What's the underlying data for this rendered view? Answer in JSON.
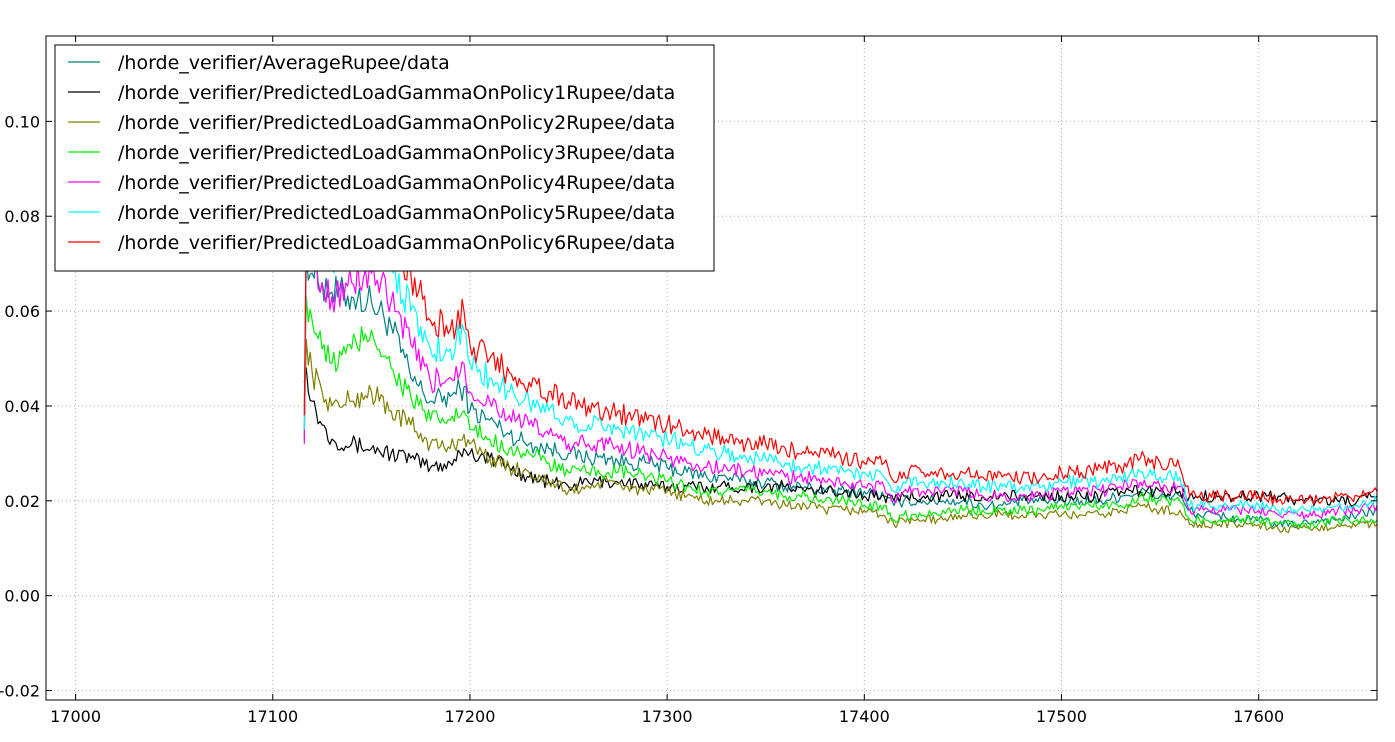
{
  "chart_data": {
    "type": "line",
    "title": "",
    "xlabel": "",
    "ylabel": "",
    "xlim": [
      16985,
      17660
    ],
    "ylim": [
      -0.022,
      0.118
    ],
    "x_ticks": [
      17000,
      17100,
      17200,
      17300,
      17400,
      17500,
      17600
    ],
    "x_tick_labels": [
      "17000",
      "17100",
      "17200",
      "17300",
      "17400",
      "17500",
      "17600"
    ],
    "y_ticks": [
      -0.02,
      0.0,
      0.02,
      0.04,
      0.06,
      0.08,
      0.1
    ],
    "y_tick_labels": [
      "-0.02",
      "0.00",
      "0.02",
      "0.04",
      "0.06",
      "0.08",
      "0.10"
    ],
    "grid": true,
    "legend_position": "top-left",
    "series": [
      {
        "name": "/horde_verifier/AverageRupee/data",
        "color": "#008080",
        "x": [
          17116,
          17117,
          17120,
          17125,
          17130,
          17140,
          17150,
          17160,
          17170,
          17180,
          17190,
          17197,
          17200,
          17210,
          17220,
          17230,
          17240,
          17250,
          17260,
          17270,
          17280,
          17290,
          17300,
          17310,
          17320,
          17330,
          17340,
          17350,
          17360,
          17370,
          17380,
          17390,
          17400,
          17410,
          17415,
          17420,
          17430,
          17440,
          17450,
          17460,
          17470,
          17480,
          17490,
          17500,
          17510,
          17520,
          17530,
          17540,
          17550,
          17560,
          17563,
          17565,
          17570,
          17580,
          17590,
          17600,
          17610,
          17620,
          17630,
          17640,
          17650,
          17660
        ],
        "y": [
          0.033,
          0.072,
          0.068,
          0.066,
          0.064,
          0.063,
          0.062,
          0.057,
          0.046,
          0.041,
          0.042,
          0.044,
          0.039,
          0.037,
          0.034,
          0.032,
          0.031,
          0.03,
          0.029,
          0.029,
          0.028,
          0.028,
          0.027,
          0.026,
          0.025,
          0.025,
          0.024,
          0.024,
          0.023,
          0.023,
          0.022,
          0.022,
          0.022,
          0.021,
          0.019,
          0.02,
          0.02,
          0.02,
          0.02,
          0.019,
          0.019,
          0.02,
          0.02,
          0.02,
          0.02,
          0.02,
          0.021,
          0.022,
          0.021,
          0.021,
          0.019,
          0.018,
          0.017,
          0.017,
          0.016,
          0.016,
          0.015,
          0.015,
          0.016,
          0.016,
          0.017,
          0.018
        ]
      },
      {
        "name": "/horde_verifier/PredictedLoadGammaOnPolicy1Rupee/data",
        "color": "#000000",
        "x": [
          17116,
          17117,
          17120,
          17125,
          17130,
          17140,
          17150,
          17160,
          17170,
          17180,
          17190,
          17197,
          17200,
          17210,
          17220,
          17230,
          17240,
          17250,
          17260,
          17270,
          17280,
          17290,
          17300,
          17310,
          17320,
          17330,
          17340,
          17350,
          17360,
          17370,
          17380,
          17390,
          17400,
          17410,
          17415,
          17420,
          17430,
          17440,
          17450,
          17460,
          17470,
          17480,
          17490,
          17500,
          17510,
          17520,
          17530,
          17540,
          17550,
          17560,
          17563,
          17565,
          17570,
          17580,
          17590,
          17600,
          17610,
          17620,
          17630,
          17640,
          17650,
          17660
        ],
        "y": [
          0.045,
          0.048,
          0.041,
          0.036,
          0.033,
          0.032,
          0.031,
          0.03,
          0.029,
          0.027,
          0.028,
          0.031,
          0.03,
          0.029,
          0.027,
          0.025,
          0.024,
          0.023,
          0.024,
          0.024,
          0.024,
          0.023,
          0.023,
          0.023,
          0.023,
          0.023,
          0.023,
          0.023,
          0.023,
          0.022,
          0.022,
          0.022,
          0.021,
          0.021,
          0.02,
          0.021,
          0.021,
          0.021,
          0.021,
          0.021,
          0.021,
          0.021,
          0.021,
          0.021,
          0.021,
          0.021,
          0.022,
          0.022,
          0.022,
          0.022,
          0.021,
          0.021,
          0.021,
          0.021,
          0.021,
          0.021,
          0.021,
          0.02,
          0.02,
          0.02,
          0.02,
          0.021
        ]
      },
      {
        "name": "/horde_verifier/PredictedLoadGammaOnPolicy2Rupee/data",
        "color": "#808000",
        "x": [
          17116,
          17117,
          17120,
          17125,
          17130,
          17140,
          17150,
          17160,
          17170,
          17180,
          17190,
          17197,
          17200,
          17210,
          17220,
          17230,
          17240,
          17250,
          17260,
          17270,
          17280,
          17290,
          17300,
          17310,
          17320,
          17330,
          17340,
          17350,
          17360,
          17370,
          17380,
          17390,
          17400,
          17410,
          17415,
          17420,
          17430,
          17440,
          17450,
          17460,
          17470,
          17480,
          17490,
          17500,
          17510,
          17520,
          17530,
          17540,
          17550,
          17560,
          17563,
          17565,
          17570,
          17580,
          17590,
          17600,
          17610,
          17620,
          17630,
          17640,
          17650,
          17660
        ],
        "y": [
          0.035,
          0.054,
          0.047,
          0.043,
          0.04,
          0.041,
          0.043,
          0.039,
          0.036,
          0.032,
          0.031,
          0.034,
          0.032,
          0.029,
          0.027,
          0.026,
          0.024,
          0.022,
          0.023,
          0.024,
          0.023,
          0.022,
          0.022,
          0.021,
          0.02,
          0.02,
          0.02,
          0.02,
          0.019,
          0.019,
          0.018,
          0.018,
          0.018,
          0.017,
          0.015,
          0.016,
          0.016,
          0.016,
          0.017,
          0.017,
          0.017,
          0.017,
          0.017,
          0.017,
          0.017,
          0.017,
          0.018,
          0.019,
          0.018,
          0.018,
          0.016,
          0.015,
          0.015,
          0.015,
          0.015,
          0.015,
          0.014,
          0.014,
          0.014,
          0.015,
          0.015,
          0.015
        ]
      },
      {
        "name": "/horde_verifier/PredictedLoadGammaOnPolicy3Rupee/data",
        "color": "#00ee00",
        "x": [
          17116,
          17117,
          17120,
          17125,
          17130,
          17140,
          17150,
          17160,
          17170,
          17180,
          17190,
          17197,
          17200,
          17210,
          17220,
          17230,
          17240,
          17250,
          17260,
          17270,
          17280,
          17290,
          17300,
          17310,
          17320,
          17330,
          17340,
          17350,
          17360,
          17370,
          17380,
          17390,
          17400,
          17410,
          17415,
          17420,
          17430,
          17440,
          17450,
          17460,
          17470,
          17480,
          17490,
          17500,
          17510,
          17520,
          17530,
          17540,
          17550,
          17560,
          17563,
          17565,
          17570,
          17580,
          17590,
          17600,
          17610,
          17620,
          17630,
          17640,
          17650,
          17660
        ],
        "y": [
          0.04,
          0.063,
          0.058,
          0.052,
          0.049,
          0.052,
          0.056,
          0.048,
          0.042,
          0.037,
          0.037,
          0.039,
          0.035,
          0.033,
          0.031,
          0.03,
          0.028,
          0.026,
          0.026,
          0.026,
          0.026,
          0.025,
          0.024,
          0.023,
          0.022,
          0.022,
          0.022,
          0.022,
          0.021,
          0.021,
          0.02,
          0.02,
          0.019,
          0.019,
          0.016,
          0.017,
          0.017,
          0.018,
          0.018,
          0.018,
          0.018,
          0.018,
          0.018,
          0.019,
          0.019,
          0.019,
          0.019,
          0.021,
          0.02,
          0.02,
          0.017,
          0.016,
          0.016,
          0.016,
          0.016,
          0.016,
          0.015,
          0.015,
          0.015,
          0.016,
          0.016,
          0.016
        ]
      },
      {
        "name": "/horde_verifier/PredictedLoadGammaOnPolicy4Rupee/data",
        "color": "#ff00ff",
        "x": [
          17116,
          17117,
          17120,
          17125,
          17130,
          17140,
          17150,
          17160,
          17170,
          17180,
          17190,
          17197,
          17200,
          17210,
          17220,
          17230,
          17240,
          17250,
          17260,
          17270,
          17280,
          17290,
          17300,
          17310,
          17320,
          17330,
          17340,
          17350,
          17360,
          17370,
          17380,
          17390,
          17400,
          17410,
          17415,
          17420,
          17430,
          17440,
          17450,
          17460,
          17470,
          17480,
          17490,
          17500,
          17510,
          17520,
          17530,
          17540,
          17550,
          17560,
          17563,
          17565,
          17570,
          17580,
          17590,
          17600,
          17610,
          17620,
          17630,
          17640,
          17650,
          17660
        ],
        "y": [
          0.032,
          0.074,
          0.07,
          0.066,
          0.063,
          0.066,
          0.068,
          0.062,
          0.053,
          0.045,
          0.046,
          0.049,
          0.043,
          0.041,
          0.038,
          0.036,
          0.034,
          0.032,
          0.032,
          0.032,
          0.031,
          0.03,
          0.029,
          0.028,
          0.027,
          0.027,
          0.026,
          0.026,
          0.025,
          0.025,
          0.024,
          0.024,
          0.023,
          0.023,
          0.02,
          0.022,
          0.022,
          0.022,
          0.022,
          0.021,
          0.021,
          0.021,
          0.021,
          0.022,
          0.022,
          0.022,
          0.023,
          0.024,
          0.023,
          0.023,
          0.02,
          0.018,
          0.018,
          0.018,
          0.018,
          0.018,
          0.017,
          0.017,
          0.017,
          0.018,
          0.018,
          0.019
        ]
      },
      {
        "name": "/horde_verifier/PredictedLoadGammaOnPolicy5Rupee/data",
        "color": "#00ffff",
        "x": [
          17116,
          17117,
          17120,
          17125,
          17130,
          17140,
          17150,
          17160,
          17170,
          17180,
          17190,
          17197,
          17200,
          17210,
          17220,
          17230,
          17240,
          17250,
          17260,
          17270,
          17280,
          17290,
          17300,
          17310,
          17320,
          17330,
          17340,
          17350,
          17360,
          17370,
          17380,
          17390,
          17400,
          17410,
          17415,
          17420,
          17430,
          17440,
          17450,
          17460,
          17470,
          17480,
          17490,
          17500,
          17510,
          17520,
          17530,
          17540,
          17550,
          17560,
          17563,
          17565,
          17570,
          17580,
          17590,
          17600,
          17610,
          17620,
          17630,
          17640,
          17650,
          17660
        ],
        "y": [
          0.035,
          0.078,
          0.075,
          0.072,
          0.07,
          0.072,
          0.075,
          0.071,
          0.06,
          0.052,
          0.052,
          0.056,
          0.049,
          0.046,
          0.043,
          0.041,
          0.039,
          0.037,
          0.036,
          0.036,
          0.035,
          0.034,
          0.033,
          0.032,
          0.031,
          0.03,
          0.029,
          0.029,
          0.028,
          0.027,
          0.027,
          0.026,
          0.026,
          0.025,
          0.022,
          0.024,
          0.024,
          0.024,
          0.024,
          0.023,
          0.023,
          0.023,
          0.023,
          0.024,
          0.024,
          0.024,
          0.025,
          0.026,
          0.025,
          0.025,
          0.021,
          0.019,
          0.019,
          0.019,
          0.019,
          0.019,
          0.018,
          0.018,
          0.018,
          0.019,
          0.019,
          0.02
        ]
      },
      {
        "name": "/horde_verifier/PredictedLoadGammaOnPolicy6Rupee/data",
        "color": "#ff0000",
        "x": [
          17116,
          17117,
          17120,
          17125,
          17130,
          17140,
          17150,
          17160,
          17170,
          17180,
          17190,
          17197,
          17200,
          17210,
          17220,
          17230,
          17240,
          17250,
          17260,
          17270,
          17280,
          17290,
          17300,
          17310,
          17320,
          17330,
          17340,
          17350,
          17360,
          17370,
          17380,
          17390,
          17400,
          17410,
          17415,
          17420,
          17430,
          17440,
          17450,
          17460,
          17470,
          17480,
          17490,
          17500,
          17510,
          17520,
          17530,
          17540,
          17550,
          17560,
          17563,
          17565,
          17570,
          17580,
          17590,
          17600,
          17610,
          17620,
          17630,
          17640,
          17650,
          17660
        ],
        "y": [
          0.038,
          0.08,
          0.076,
          0.074,
          0.073,
          0.075,
          0.078,
          0.075,
          0.068,
          0.058,
          0.056,
          0.06,
          0.053,
          0.05,
          0.047,
          0.045,
          0.043,
          0.041,
          0.04,
          0.039,
          0.038,
          0.037,
          0.036,
          0.035,
          0.034,
          0.033,
          0.032,
          0.032,
          0.031,
          0.03,
          0.03,
          0.029,
          0.028,
          0.028,
          0.024,
          0.026,
          0.026,
          0.026,
          0.026,
          0.025,
          0.025,
          0.025,
          0.025,
          0.026,
          0.026,
          0.027,
          0.027,
          0.029,
          0.028,
          0.027,
          0.023,
          0.021,
          0.021,
          0.021,
          0.021,
          0.021,
          0.02,
          0.02,
          0.02,
          0.021,
          0.021,
          0.022
        ]
      }
    ]
  }
}
